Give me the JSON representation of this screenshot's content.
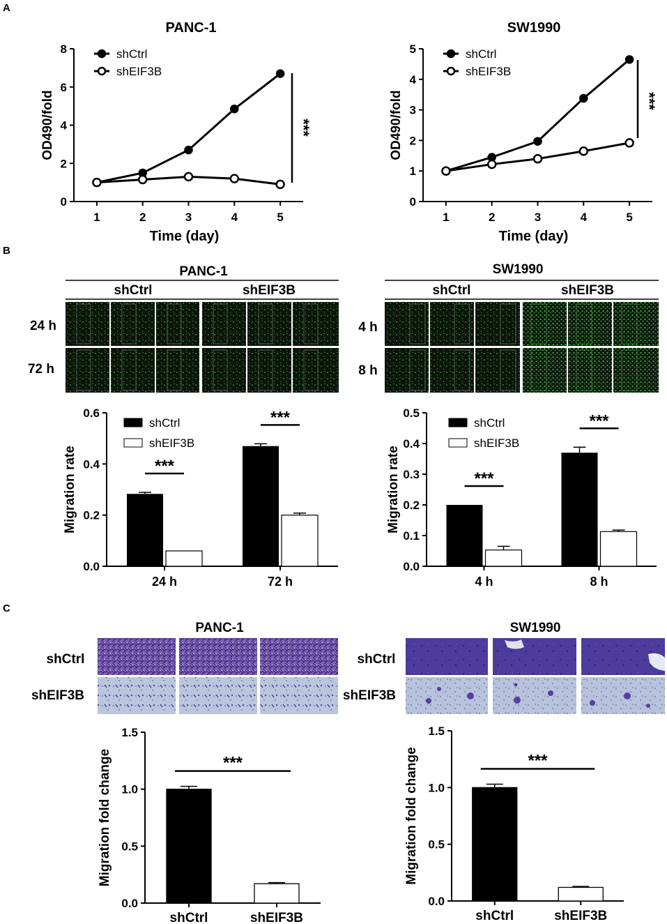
{
  "panels": {
    "a": "A",
    "b": "B",
    "c": "C"
  },
  "cell_lines": {
    "panc1": "PANC-1",
    "sw1990": "SW1990"
  },
  "groups": {
    "ctrl": "shCtrl",
    "kd": "shEIF3B"
  },
  "significance": "***",
  "colors": {
    "ctrl": "#000000",
    "kd": "#ffffff",
    "green_cells": "#2f8a2f",
    "crystal_violet": "#5a3b96"
  },
  "panel_b": {
    "panc1_times": [
      "24 h",
      "72 h"
    ],
    "sw1990_times": [
      "4 h",
      "8 h"
    ]
  },
  "panel_c": {
    "row_labels": [
      "shCtrl",
      "shEIF3B"
    ]
  },
  "chart_data": [
    {
      "id": "a_panc1",
      "type": "line",
      "title": "PANC-1",
      "xlabel": "Time (day)",
      "ylabel": "OD490/fold",
      "x": [
        1,
        2,
        3,
        4,
        5
      ],
      "xlim": [
        0.5,
        5.5
      ],
      "ylim": [
        0,
        8
      ],
      "yticks": [
        "0",
        "2",
        "4",
        "6",
        "8"
      ],
      "legend_position": "top-left",
      "series": [
        {
          "name": "shCtrl",
          "marker": "filled-circle",
          "values": [
            1.0,
            1.5,
            2.7,
            4.85,
            6.7
          ]
        },
        {
          "name": "shEIF3B",
          "marker": "open-circle",
          "values": [
            1.0,
            1.15,
            1.3,
            1.2,
            0.9
          ]
        }
      ],
      "annotation": "***"
    },
    {
      "id": "a_sw1990",
      "type": "line",
      "title": "SW1990",
      "xlabel": "Time (day)",
      "ylabel": "OD490/fold",
      "x": [
        1,
        2,
        3,
        4,
        5
      ],
      "xlim": [
        0.5,
        5.5
      ],
      "ylim": [
        0,
        5
      ],
      "yticks": [
        "0",
        "1",
        "2",
        "3",
        "4",
        "5"
      ],
      "legend_position": "top-left",
      "series": [
        {
          "name": "shCtrl",
          "marker": "filled-circle",
          "values": [
            1.0,
            1.45,
            1.97,
            3.38,
            4.65
          ]
        },
        {
          "name": "shEIF3B",
          "marker": "open-circle",
          "values": [
            1.0,
            1.22,
            1.4,
            1.65,
            1.92
          ]
        }
      ],
      "annotation": "***"
    },
    {
      "id": "b_panc1",
      "type": "bar",
      "ylabel": "Migration rate",
      "categories": [
        "24 h",
        "72 h"
      ],
      "ylim": [
        0,
        0.6
      ],
      "yticks": [
        "0.0",
        "0.2",
        "0.4",
        "0.6"
      ],
      "legend_position": "top-left",
      "series": [
        {
          "name": "shCtrl",
          "values": [
            0.283,
            0.47
          ],
          "errors": [
            0.006,
            0.009
          ]
        },
        {
          "name": "shEIF3B",
          "values": [
            0.06,
            0.2
          ],
          "errors": [
            0.0,
            0.008
          ]
        }
      ],
      "annotation": "***"
    },
    {
      "id": "b_sw1990",
      "type": "bar",
      "ylabel": "Migration rate",
      "categories": [
        "4 h",
        "8 h"
      ],
      "ylim": [
        0,
        0.5
      ],
      "yticks": [
        "0.0",
        "0.1",
        "0.2",
        "0.3",
        "0.4",
        "0.5"
      ],
      "legend_position": "top-left",
      "series": [
        {
          "name": "shCtrl",
          "values": [
            0.2,
            0.37
          ],
          "errors": [
            0.0,
            0.018
          ]
        },
        {
          "name": "shEIF3B",
          "values": [
            0.053,
            0.113
          ],
          "errors": [
            0.012,
            0.005
          ]
        }
      ],
      "annotation": "***"
    },
    {
      "id": "c_panc1",
      "type": "bar",
      "ylabel": "Migration fold change",
      "categories": [
        "shCtrl",
        "shEIF3B"
      ],
      "ylim": [
        0,
        1.5
      ],
      "yticks": [
        "0.0",
        "0.5",
        "1.0",
        "1.5"
      ],
      "values": [
        1.0,
        0.17
      ],
      "errors": [
        0.025,
        0.01
      ],
      "fills": [
        "#000000",
        "#ffffff"
      ],
      "annotation": "***"
    },
    {
      "id": "c_sw1990",
      "type": "bar",
      "ylabel": "Migration fold change",
      "categories": [
        "shCtrl",
        "shEIF3B"
      ],
      "ylim": [
        0,
        1.5
      ],
      "yticks": [
        "0.0",
        "0.5",
        "1.0",
        "1.5"
      ],
      "values": [
        1.0,
        0.12
      ],
      "errors": [
        0.03,
        0.008
      ],
      "fills": [
        "#000000",
        "#ffffff"
      ],
      "annotation": "***"
    }
  ]
}
